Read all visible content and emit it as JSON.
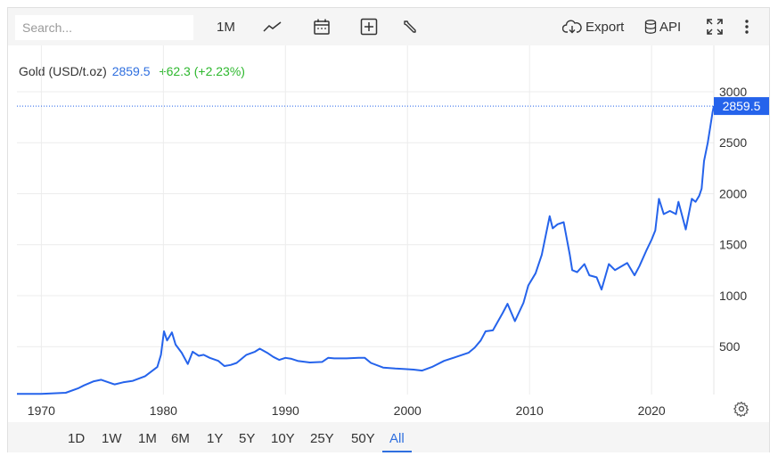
{
  "toolbar": {
    "search_placeholder": "Search...",
    "interval_label": "1M",
    "export_label": "Export",
    "api_label": "API",
    "icons": [
      "line-chart-icon",
      "calendar-icon",
      "add-indicator-icon",
      "wrench-icon",
      "cloud-download-icon",
      "database-icon",
      "fullscreen-icon",
      "more-vertical-icon"
    ]
  },
  "legend": {
    "name": "Gold (USD/t.oz)",
    "price": "2859.5",
    "change": "+62.3 (+2.23%)"
  },
  "price_tag": "2859.5",
  "ranges": [
    "1D",
    "1W",
    "1M",
    "6M",
    "1Y",
    "5Y",
    "10Y",
    "25Y",
    "50Y",
    "All"
  ],
  "active_range": "All",
  "colors": {
    "line": "#2563eb",
    "price_tag": "#2563eb",
    "positive": "#2eb82e",
    "legend_price": "#2f6fdf",
    "toolbar_bg": "#f5f5f5",
    "grid": "#ececec"
  },
  "chart_data": {
    "type": "line",
    "title": "",
    "xlabel": "",
    "ylabel": "",
    "xlim": [
      1968.0,
      2025.1
    ],
    "ylim": [
      0,
      3000
    ],
    "x_ticks": [
      1970,
      1980,
      1990,
      2000,
      2010,
      2020
    ],
    "x_tick_labels": [
      "1970",
      "1980",
      "1990",
      "2000",
      "2010",
      "2020"
    ],
    "y_ticks": [
      500,
      1000,
      1500,
      2000,
      2500,
      3000
    ],
    "y_tick_labels": [
      "500",
      "1000",
      "1500",
      "2000",
      "2500",
      "3000"
    ],
    "grid": true,
    "axis_side": "right",
    "last_value": 2859.5,
    "series": [
      {
        "x": [
          1968.0,
          1970.0,
          1972.0,
          1973.0,
          1973.5,
          1974.3,
          1974.9,
          1976.0,
          1976.7,
          1977.5,
          1978.5,
          1979.5,
          1979.8,
          1980.05,
          1980.3,
          1980.7,
          1981.0,
          1981.5,
          1982.0,
          1982.4,
          1982.9,
          1983.3,
          1983.8,
          1984.5,
          1985.0,
          1985.5,
          1986.0,
          1986.8,
          1987.5,
          1987.9,
          1988.5,
          1989.0,
          1989.5,
          1990.0,
          1990.5,
          1991.0,
          1992.0,
          1993.0,
          1993.5,
          1994.0,
          1995.0,
          1996.0,
          1996.5,
          1997.0,
          1998.0,
          1999.0,
          1999.8,
          2000.5,
          2001.2,
          2002.0,
          2003.0,
          2004.0,
          2005.0,
          2005.5,
          2006.0,
          2006.4,
          2007.0,
          2007.8,
          2008.2,
          2008.8,
          2009.5,
          2009.9,
          2010.5,
          2011.0,
          2011.65,
          2011.9,
          2012.3,
          2012.8,
          2013.3,
          2013.5,
          2013.9,
          2014.5,
          2014.9,
          2015.5,
          2015.9,
          2016.5,
          2017.0,
          2018.0,
          2018.6,
          2019.0,
          2019.6,
          2020.0,
          2020.3,
          2020.6,
          2021.0,
          2021.5,
          2022.0,
          2022.2,
          2022.8,
          2023.3,
          2023.6,
          2023.9,
          2024.1,
          2024.3,
          2024.6,
          2024.8,
          2025.0,
          2025.1
        ],
        "y": [
          36,
          36,
          48,
          90,
          120,
          160,
          175,
          130,
          150,
          165,
          210,
          300,
          420,
          650,
          560,
          640,
          520,
          440,
          330,
          450,
          410,
          420,
          390,
          360,
          310,
          320,
          340,
          420,
          450,
          480,
          440,
          400,
          370,
          390,
          380,
          360,
          345,
          350,
          390,
          385,
          385,
          390,
          390,
          340,
          295,
          285,
          280,
          275,
          265,
          300,
          360,
          400,
          440,
          490,
          560,
          650,
          660,
          830,
          920,
          750,
          930,
          1100,
          1220,
          1400,
          1780,
          1660,
          1700,
          1720,
          1400,
          1250,
          1230,
          1310,
          1200,
          1180,
          1060,
          1310,
          1250,
          1320,
          1200,
          1290,
          1450,
          1550,
          1640,
          1950,
          1800,
          1830,
          1800,
          1920,
          1650,
          1950,
          1920,
          1980,
          2050,
          2320,
          2500,
          2650,
          2800,
          2860
        ]
      }
    ]
  }
}
